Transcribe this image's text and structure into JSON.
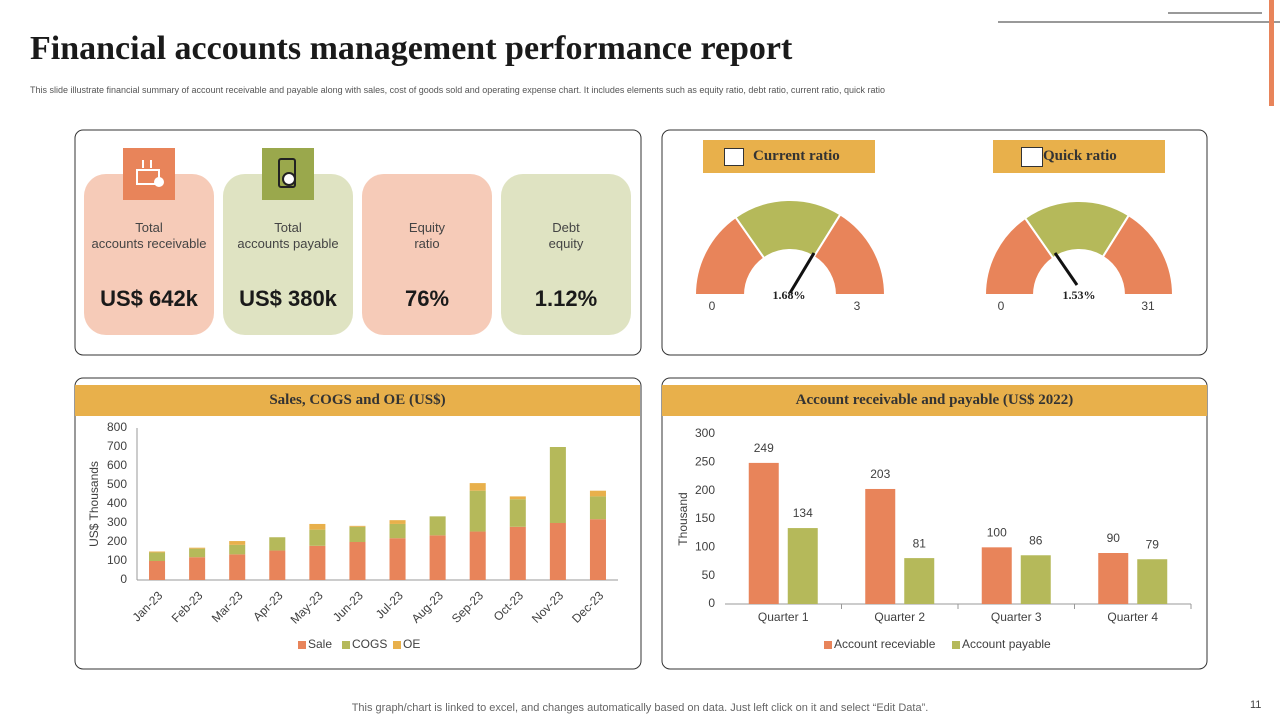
{
  "header": {
    "title": "Financial accounts management performance report",
    "subtitle": "This slide illustrate financial summary of account receivable and payable along with sales, cost of goods sold and operating expense chart. It includes elements such as equity ratio, debt ratio, current ratio, quick ratio"
  },
  "kpis": [
    {
      "label": "Total\naccounts receivable",
      "value": "US$ 642k"
    },
    {
      "label": "Total\naccounts payable",
      "value": "US$ 380k"
    },
    {
      "label": "Equity\nratio",
      "value": "76%"
    },
    {
      "label": "Debt\nequity",
      "value": "1.12%"
    }
  ],
  "gauges": [
    {
      "title": "Current ratio",
      "value_label": "1.68%",
      "min": "0",
      "max": "3"
    },
    {
      "title": "Quick ratio",
      "value_label": "1.53%",
      "min": "0",
      "max": "31"
    }
  ],
  "chart_data": [
    {
      "type": "bar",
      "stacked": true,
      "title": "Sales, COGS and OE (US$)",
      "y_label": "US$ Thousands",
      "categories": [
        "Jan-23",
        "Feb-23",
        "Mar-23",
        "Apr-23",
        "May-23",
        "Jun-23",
        "Jul-23",
        "Aug-23",
        "Sep-23",
        "Oct-23",
        "Nov-23",
        "Dec-23"
      ],
      "series": [
        {
          "name": "Sale",
          "color": "#e8845a",
          "values": [
            100,
            120,
            135,
            155,
            180,
            200,
            220,
            235,
            255,
            280,
            300,
            320
          ]
        },
        {
          "name": "COGS",
          "color": "#b5b95a",
          "values": [
            45,
            45,
            50,
            70,
            85,
            80,
            75,
            100,
            215,
            145,
            400,
            120
          ]
        },
        {
          "name": "OE",
          "color": "#e8b04b",
          "values": [
            5,
            5,
            20,
            0,
            30,
            5,
            20,
            0,
            40,
            15,
            0,
            30
          ]
        }
      ],
      "ylim": [
        0,
        800
      ],
      "yticks": [
        0,
        100,
        200,
        300,
        400,
        500,
        600,
        700,
        800
      ],
      "grid": false
    },
    {
      "type": "bar",
      "stacked": false,
      "title": "Account receivable and payable (US$ 2022)",
      "y_label": "Thousand",
      "categories": [
        "Quarter 1",
        "Quarter 2",
        "Quarter 3",
        "Quarter 4"
      ],
      "series": [
        {
          "name": "Account receviable",
          "color": "#e8845a",
          "values": [
            249,
            203,
            100,
            90
          ]
        },
        {
          "name": "Account payable",
          "color": "#b5b95a",
          "values": [
            134,
            81,
            86,
            79
          ]
        }
      ],
      "ylim": [
        0,
        300
      ],
      "yticks": [
        0,
        50,
        100,
        150,
        200,
        250,
        300
      ],
      "grid": false,
      "data_labels": true
    }
  ],
  "footer": {
    "note": "This graph/chart is linked to excel,  and changes automatically based on data. Just left click on it and select “Edit Data”.",
    "page": "11"
  }
}
